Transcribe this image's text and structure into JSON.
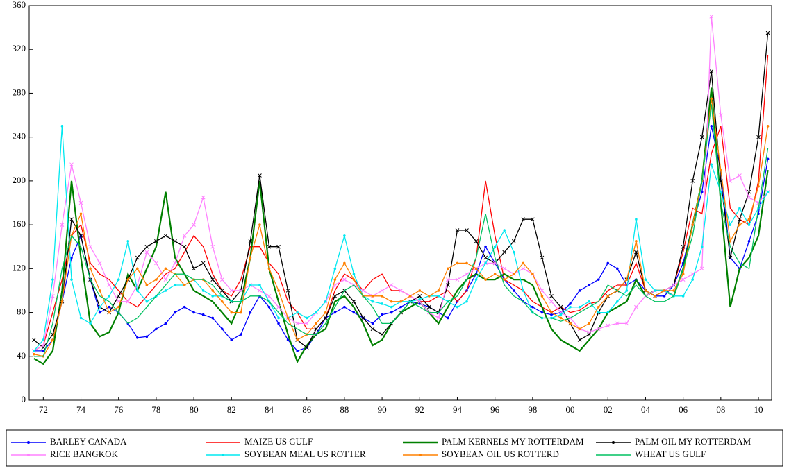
{
  "chart_data": {
    "type": "line",
    "x": [
      1972,
      1972.5,
      1973,
      1973.5,
      1974,
      1974.5,
      1975,
      1975.5,
      1976,
      1976.5,
      1977,
      1977.5,
      1978,
      1978.5,
      1979,
      1979.5,
      1980,
      1980.5,
      1981,
      1981.5,
      1982,
      1982.5,
      1983,
      1983.5,
      1984,
      1984.5,
      1985,
      1985.5,
      1986,
      1986.5,
      1987,
      1987.5,
      1988,
      1988.5,
      1989,
      1989.5,
      1990,
      1990.5,
      1991,
      1991.5,
      1992,
      1992.5,
      1993,
      1993.5,
      1994,
      1994.5,
      1995,
      1995.5,
      1996,
      1996.5,
      1997,
      1997.5,
      1998,
      1998.5,
      1999,
      1999.5,
      2000,
      2000.5,
      2001,
      2001.5,
      2002,
      2002.5,
      2003,
      2003.5,
      2004,
      2004.5,
      2005,
      2005.5,
      2006,
      2006.5,
      2007,
      2007.5,
      2008,
      2008.5,
      2009,
      2009.5,
      2010,
      2010.5,
      2011
    ],
    "xlim": [
      1971.75,
      2011.2
    ],
    "xticks": [
      {
        "value": 1972.5,
        "label": "72"
      },
      {
        "value": 1974.5,
        "label": "74"
      },
      {
        "value": 1976.5,
        "label": "76"
      },
      {
        "value": 1978.5,
        "label": "78"
      },
      {
        "value": 1980.5,
        "label": "80"
      },
      {
        "value": 1982.5,
        "label": "82"
      },
      {
        "value": 1984.5,
        "label": "84"
      },
      {
        "value": 1986.5,
        "label": "86"
      },
      {
        "value": 1988.5,
        "label": "88"
      },
      {
        "value": 1990.5,
        "label": "90"
      },
      {
        "value": 1992.5,
        "label": "92"
      },
      {
        "value": 1994.5,
        "label": "94"
      },
      {
        "value": 1996.5,
        "label": "96"
      },
      {
        "value": 1998.5,
        "label": "98"
      },
      {
        "value": 2000.5,
        "label": "00"
      },
      {
        "value": 2002.5,
        "label": "02"
      },
      {
        "value": 2004.5,
        "label": "04"
      },
      {
        "value": 2006.5,
        "label": "06"
      },
      {
        "value": 2008.5,
        "label": "08"
      },
      {
        "value": 2010.5,
        "label": "10"
      }
    ],
    "ylim": [
      0,
      360
    ],
    "yticks": [
      0,
      40,
      80,
      120,
      160,
      200,
      240,
      280,
      320,
      360
    ],
    "series": [
      {
        "name": "BARLEY CANADA",
        "color": "#0000ff",
        "marker": "circle",
        "values": [
          45,
          45,
          55,
          90,
          130,
          150,
          110,
          80,
          85,
          80,
          70,
          57,
          58,
          65,
          70,
          80,
          85,
          80,
          78,
          75,
          65,
          55,
          60,
          80,
          95,
          85,
          70,
          55,
          45,
          48,
          60,
          75,
          80,
          85,
          80,
          75,
          70,
          78,
          80,
          85,
          90,
          88,
          85,
          80,
          75,
          90,
          100,
          115,
          140,
          125,
          110,
          100,
          90,
          85,
          80,
          78,
          80,
          88,
          100,
          105,
          110,
          125,
          120,
          105,
          110,
          100,
          95,
          95,
          105,
          125,
          160,
          190,
          250,
          210,
          130,
          120,
          145,
          170,
          220
        ]
      },
      {
        "name": "MAIZE US GULF",
        "color": "#ff0000",
        "marker": "none",
        "values": [
          45,
          50,
          80,
          110,
          150,
          160,
          125,
          115,
          110,
          100,
          90,
          85,
          95,
          105,
          115,
          120,
          135,
          150,
          140,
          115,
          100,
          95,
          110,
          140,
          140,
          125,
          115,
          90,
          80,
          65,
          65,
          75,
          100,
          115,
          110,
          100,
          110,
          115,
          100,
          100,
          95,
          90,
          90,
          95,
          100,
          90,
          100,
          130,
          200,
          150,
          110,
          105,
          100,
          90,
          85,
          80,
          85,
          80,
          82,
          88,
          90,
          100,
          105,
          105,
          125,
          100,
          95,
          100,
          105,
          135,
          175,
          170,
          225,
          250,
          175,
          165,
          160,
          200,
          315
        ]
      },
      {
        "name": "PALM KERNELS MY ROTTERDAM",
        "color": "#008000",
        "marker": "none",
        "values": [
          38,
          33,
          45,
          100,
          200,
          130,
          70,
          58,
          62,
          80,
          115,
          100,
          120,
          140,
          190,
          130,
          115,
          100,
          95,
          90,
          80,
          70,
          90,
          130,
          200,
          120,
          90,
          60,
          35,
          50,
          60,
          65,
          90,
          95,
          85,
          70,
          50,
          55,
          70,
          80,
          85,
          90,
          80,
          70,
          85,
          100,
          110,
          115,
          110,
          110,
          115,
          110,
          110,
          105,
          85,
          65,
          55,
          50,
          45,
          55,
          65,
          80,
          85,
          90,
          110,
          95,
          100,
          100,
          95,
          120,
          160,
          200,
          285,
          180,
          85,
          120,
          130,
          150,
          210
        ]
      },
      {
        "name": "PALM OIL MY ROTTERDAM",
        "color": "#000000",
        "marker": "cross",
        "values": [
          55,
          48,
          60,
          90,
          165,
          150,
          110,
          85,
          80,
          95,
          110,
          130,
          140,
          145,
          150,
          145,
          140,
          120,
          125,
          110,
          100,
          90,
          100,
          145,
          205,
          140,
          140,
          100,
          55,
          48,
          65,
          75,
          95,
          100,
          90,
          75,
          65,
          60,
          70,
          80,
          90,
          95,
          85,
          80,
          105,
          155,
          155,
          145,
          130,
          125,
          135,
          145,
          165,
          165,
          130,
          95,
          85,
          70,
          55,
          60,
          80,
          95,
          100,
          110,
          135,
          100,
          95,
          100,
          105,
          140,
          200,
          240,
          300,
          200,
          130,
          165,
          190,
          240,
          335
        ]
      },
      {
        "name": "RICE BANGKOK",
        "color": "#ff80ff",
        "marker": "cross",
        "values": [
          45,
          50,
          95,
          160,
          215,
          180,
          140,
          125,
          105,
          90,
          90,
          105,
          135,
          125,
          110,
          125,
          150,
          160,
          185,
          140,
          110,
          100,
          100,
          105,
          100,
          95,
          85,
          75,
          70,
          70,
          80,
          90,
          105,
          110,
          105,
          100,
          95,
          100,
          105,
          100,
          95,
          90,
          80,
          75,
          110,
          110,
          115,
          120,
          125,
          125,
          120,
          115,
          120,
          115,
          100,
          90,
          80,
          75,
          65,
          62,
          65,
          68,
          70,
          70,
          85,
          95,
          100,
          100,
          105,
          110,
          115,
          120,
          350,
          260,
          200,
          205,
          185,
          180,
          190
        ]
      },
      {
        "name": "SOYBEAN MEAL US ROTTER",
        "color": "#00e8f0",
        "marker": "circle",
        "values": [
          45,
          55,
          110,
          250,
          110,
          75,
          70,
          85,
          95,
          110,
          145,
          100,
          90,
          95,
          100,
          105,
          105,
          110,
          100,
          95,
          95,
          90,
          90,
          105,
          105,
          90,
          75,
          75,
          80,
          75,
          80,
          90,
          120,
          150,
          115,
          95,
          90,
          88,
          85,
          90,
          90,
          92,
          95,
          95,
          90,
          85,
          90,
          110,
          125,
          140,
          155,
          135,
          100,
          80,
          75,
          75,
          78,
          85,
          85,
          90,
          80,
          80,
          90,
          100,
          165,
          110,
          100,
          100,
          95,
          95,
          110,
          140,
          215,
          190,
          160,
          175,
          160,
          175,
          190
        ]
      },
      {
        "name": "SOYBEAN OIL US ROTTERD",
        "color": "#ff8000",
        "marker": "circle",
        "values": [
          42,
          40,
          55,
          90,
          150,
          170,
          120,
          100,
          80,
          85,
          110,
          120,
          105,
          110,
          120,
          115,
          105,
          110,
          110,
          100,
          90,
          80,
          80,
          130,
          160,
          120,
          100,
          75,
          55,
          60,
          70,
          80,
          110,
          125,
          110,
          95,
          95,
          95,
          90,
          90,
          95,
          100,
          95,
          100,
          120,
          125,
          125,
          120,
          110,
          115,
          110,
          115,
          125,
          115,
          95,
          80,
          75,
          70,
          65,
          70,
          85,
          95,
          100,
          110,
          145,
          100,
          95,
          100,
          100,
          115,
          160,
          200,
          275,
          210,
          145,
          160,
          165,
          195,
          250
        ]
      },
      {
        "name": "WHEAT US GULF",
        "color": "#00c060",
        "marker": "none",
        "values": [
          40,
          40,
          70,
          120,
          150,
          140,
          110,
          95,
          90,
          80,
          70,
          75,
          85,
          95,
          105,
          115,
          115,
          110,
          110,
          105,
          95,
          90,
          90,
          95,
          95,
          90,
          80,
          70,
          65,
          60,
          60,
          70,
          85,
          100,
          105,
          95,
          85,
          70,
          70,
          80,
          90,
          85,
          80,
          80,
          90,
          95,
          110,
          130,
          170,
          130,
          105,
          95,
          90,
          80,
          75,
          75,
          72,
          75,
          80,
          85,
          90,
          105,
          100,
          95,
          105,
          95,
          90,
          90,
          95,
          120,
          150,
          200,
          270,
          180,
          140,
          125,
          120,
          175,
          230
        ]
      }
    ]
  }
}
